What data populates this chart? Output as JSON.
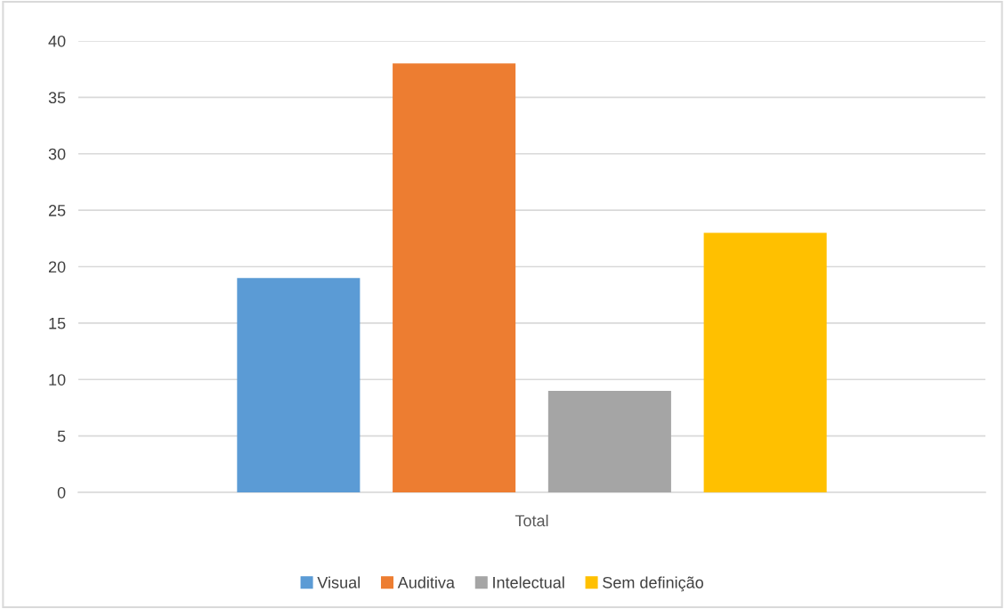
{
  "chart_data": {
    "type": "bar",
    "categories": [
      "Total"
    ],
    "series": [
      {
        "name": "Visual",
        "color": "#5b9bd5",
        "values": [
          19
        ]
      },
      {
        "name": "Auditiva",
        "color": "#ed7d31",
        "values": [
          38
        ]
      },
      {
        "name": "Intelectual",
        "color": "#a5a5a5",
        "values": [
          9
        ]
      },
      {
        "name": "Sem definição",
        "color": "#ffc000",
        "values": [
          23
        ]
      }
    ],
    "ylim": [
      0,
      40
    ],
    "yticks": [
      0,
      5,
      10,
      15,
      20,
      25,
      30,
      35,
      40
    ],
    "grid": "y",
    "legend": "bottom"
  }
}
